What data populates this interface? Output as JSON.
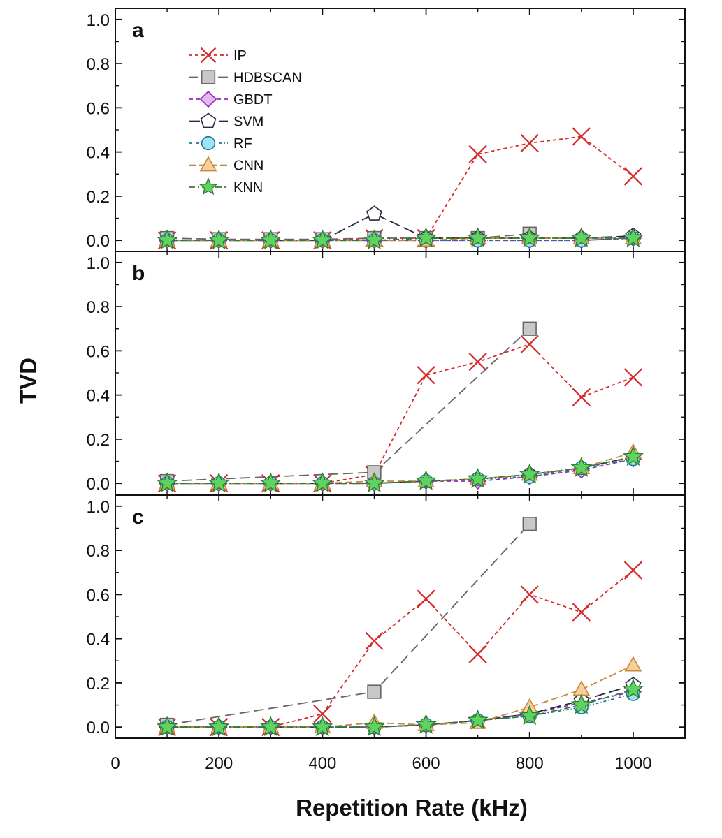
{
  "chart_data": {
    "type": "line",
    "xlabel": "Repetition Rate (kHz)",
    "ylabel": "TVD",
    "xlim": [
      0,
      1100
    ],
    "ylim": [
      -0.05,
      1.05
    ],
    "x_ticks": [
      "0",
      "200",
      "400",
      "600",
      "800",
      "1000"
    ],
    "y_ticks": [
      "0.0",
      "0.2",
      "0.4",
      "0.6",
      "0.8",
      "1.0"
    ],
    "x": [
      100,
      200,
      300,
      400,
      500,
      600,
      700,
      800,
      900,
      1000
    ],
    "legend": [
      {
        "name": "IP",
        "color": "#d42a2a",
        "marker": "x",
        "dash": "5,4",
        "fill": "none"
      },
      {
        "name": "HDBSCAN",
        "color": "#666666",
        "marker": "square",
        "dash": "14,7",
        "fill": "#c8c8c8"
      },
      {
        "name": "GBDT",
        "color": "#8e2bb5",
        "marker": "diamond",
        "dash": "6,4",
        "fill": "#e6b6f3"
      },
      {
        "name": "SVM",
        "color": "#2a2a44",
        "marker": "pentagon",
        "dash": "16,6",
        "fill": "#ffffff"
      },
      {
        "name": "RF",
        "color": "#1b7a92",
        "marker": "circle",
        "dash": "4,3,1,3",
        "fill": "#9fe3f5"
      },
      {
        "name": "CNN",
        "color": "#c8893a",
        "marker": "triangle",
        "dash": "10,5",
        "fill": "#f6cf9c"
      },
      {
        "name": "KNN",
        "color": "#2e7d32",
        "marker": "star",
        "dash": "9,4,2,4",
        "fill": "#5fd35f"
      }
    ],
    "panels": [
      {
        "label": "a",
        "series": [
          {
            "name": "IP",
            "values": [
              0.0,
              0.0,
              0.0,
              0.0,
              0.01,
              0.01,
              0.39,
              0.44,
              0.47,
              0.29
            ]
          },
          {
            "name": "HDBSCAN",
            "values": [
              0.01,
              0.005,
              0.005,
              0.005,
              0.01,
              0.01,
              0.01,
              0.03,
              null,
              null
            ]
          },
          {
            "name": "GBDT",
            "values": [
              0.0,
              0.0,
              0.0,
              0.0,
              0.0,
              0.0,
              0.0,
              0.0,
              0.0,
              0.01
            ]
          },
          {
            "name": "SVM",
            "values": [
              0.0,
              0.0,
              0.0,
              0.0,
              0.12,
              0.01,
              0.01,
              0.01,
              0.01,
              0.02
            ]
          },
          {
            "name": "RF",
            "values": [
              0.0,
              0.0,
              0.0,
              0.0,
              0.0,
              0.0,
              0.0,
              0.0,
              0.0,
              0.01
            ]
          },
          {
            "name": "CNN",
            "values": [
              0.0,
              0.0,
              0.0,
              0.0,
              0.0,
              0.0,
              0.01,
              0.01,
              0.01,
              0.01
            ]
          },
          {
            "name": "KNN",
            "values": [
              0.0,
              0.0,
              0.0,
              0.0,
              0.0,
              0.01,
              0.01,
              0.01,
              0.01,
              0.01
            ]
          }
        ]
      },
      {
        "label": "b",
        "series": [
          {
            "name": "IP",
            "values": [
              0.0,
              0.0,
              0.0,
              0.0,
              0.04,
              0.49,
              0.55,
              0.63,
              0.39,
              0.48
            ]
          },
          {
            "name": "HDBSCAN",
            "values": [
              0.01,
              null,
              null,
              null,
              0.05,
              null,
              null,
              0.7,
              null,
              null
            ]
          },
          {
            "name": "GBDT",
            "values": [
              0.0,
              0.0,
              0.0,
              0.0,
              0.0,
              0.01,
              0.01,
              0.03,
              0.06,
              0.11
            ]
          },
          {
            "name": "SVM",
            "values": [
              0.0,
              0.0,
              0.0,
              0.0,
              0.0,
              0.01,
              0.02,
              0.04,
              0.07,
              0.12
            ]
          },
          {
            "name": "RF",
            "values": [
              0.0,
              0.0,
              0.0,
              0.0,
              0.0,
              0.01,
              0.02,
              0.03,
              0.07,
              0.11
            ]
          },
          {
            "name": "CNN",
            "values": [
              0.0,
              0.0,
              0.0,
              0.0,
              0.01,
              0.01,
              0.02,
              0.04,
              0.07,
              0.14
            ]
          },
          {
            "name": "KNN",
            "values": [
              0.0,
              0.0,
              0.0,
              0.0,
              0.0,
              0.01,
              0.02,
              0.04,
              0.07,
              0.12
            ]
          }
        ]
      },
      {
        "label": "c",
        "series": [
          {
            "name": "IP",
            "values": [
              0.0,
              0.0,
              0.0,
              0.06,
              0.39,
              0.58,
              0.33,
              0.6,
              0.52,
              0.71
            ]
          },
          {
            "name": "HDBSCAN",
            "values": [
              0.01,
              null,
              null,
              null,
              0.16,
              null,
              null,
              0.92,
              null,
              null
            ]
          },
          {
            "name": "GBDT",
            "values": [
              0.0,
              0.0,
              0.0,
              0.0,
              0.0,
              0.01,
              0.03,
              0.06,
              0.11,
              0.16
            ]
          },
          {
            "name": "SVM",
            "values": [
              0.0,
              0.0,
              0.0,
              0.0,
              0.0,
              0.01,
              0.03,
              0.06,
              0.12,
              0.19
            ]
          },
          {
            "name": "RF",
            "values": [
              0.0,
              0.0,
              0.0,
              0.0,
              0.0,
              0.01,
              0.03,
              0.05,
              0.09,
              0.15
            ]
          },
          {
            "name": "CNN",
            "values": [
              0.0,
              0.0,
              0.0,
              0.0,
              0.02,
              0.01,
              0.02,
              0.09,
              0.17,
              0.28
            ]
          },
          {
            "name": "KNN",
            "values": [
              0.0,
              0.0,
              0.0,
              0.0,
              0.0,
              0.01,
              0.03,
              0.05,
              0.1,
              0.17
            ]
          }
        ]
      }
    ]
  }
}
